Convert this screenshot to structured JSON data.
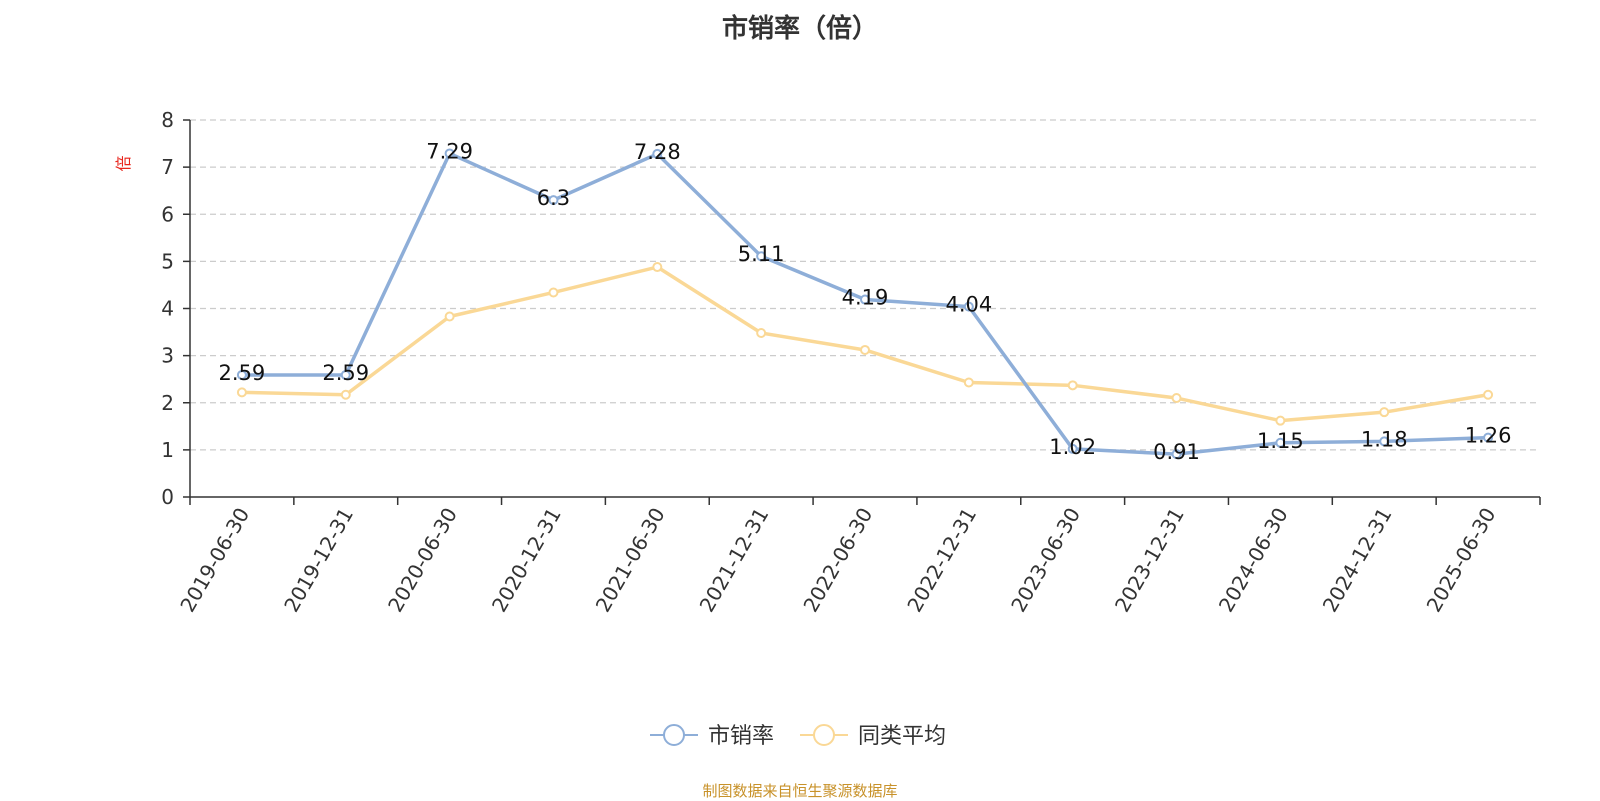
{
  "title": "市销率（倍）",
  "source": "制图数据来自恒生聚源数据库",
  "chart_data": {
    "type": "line",
    "title": "市销率（倍）",
    "ylabel": "倍",
    "xlabel": "",
    "ylim": [
      0,
      8
    ],
    "yticks": [
      0,
      1,
      2,
      3,
      4,
      5,
      6,
      7,
      8
    ],
    "grid": "horizontal dashed",
    "legend_position": "bottom-center",
    "categories": [
      "2019-06-30",
      "2019-12-31",
      "2020-06-30",
      "2020-12-31",
      "2021-06-30",
      "2021-12-31",
      "2022-06-30",
      "2022-12-31",
      "2023-06-30",
      "2023-12-31",
      "2024-06-30",
      "2024-12-31",
      "2025-06-30"
    ],
    "series": [
      {
        "name": "市销率",
        "color": "#8eaed8",
        "values": [
          2.59,
          2.59,
          7.29,
          6.3,
          7.28,
          5.11,
          4.19,
          4.04,
          1.02,
          0.91,
          1.15,
          1.18,
          1.26
        ],
        "labels": [
          "2.59",
          "2.59",
          "7.29",
          "6.3",
          "7.28",
          "5.11",
          "4.19",
          "4.04",
          "1.02",
          "0.91",
          "1.15",
          "1.18",
          "1.26"
        ]
      },
      {
        "name": "同类平均",
        "color": "#fad896",
        "values": [
          2.22,
          2.17,
          3.83,
          4.34,
          4.88,
          3.48,
          3.12,
          2.43,
          2.37,
          2.1,
          1.62,
          1.8,
          2.17
        ]
      }
    ]
  }
}
